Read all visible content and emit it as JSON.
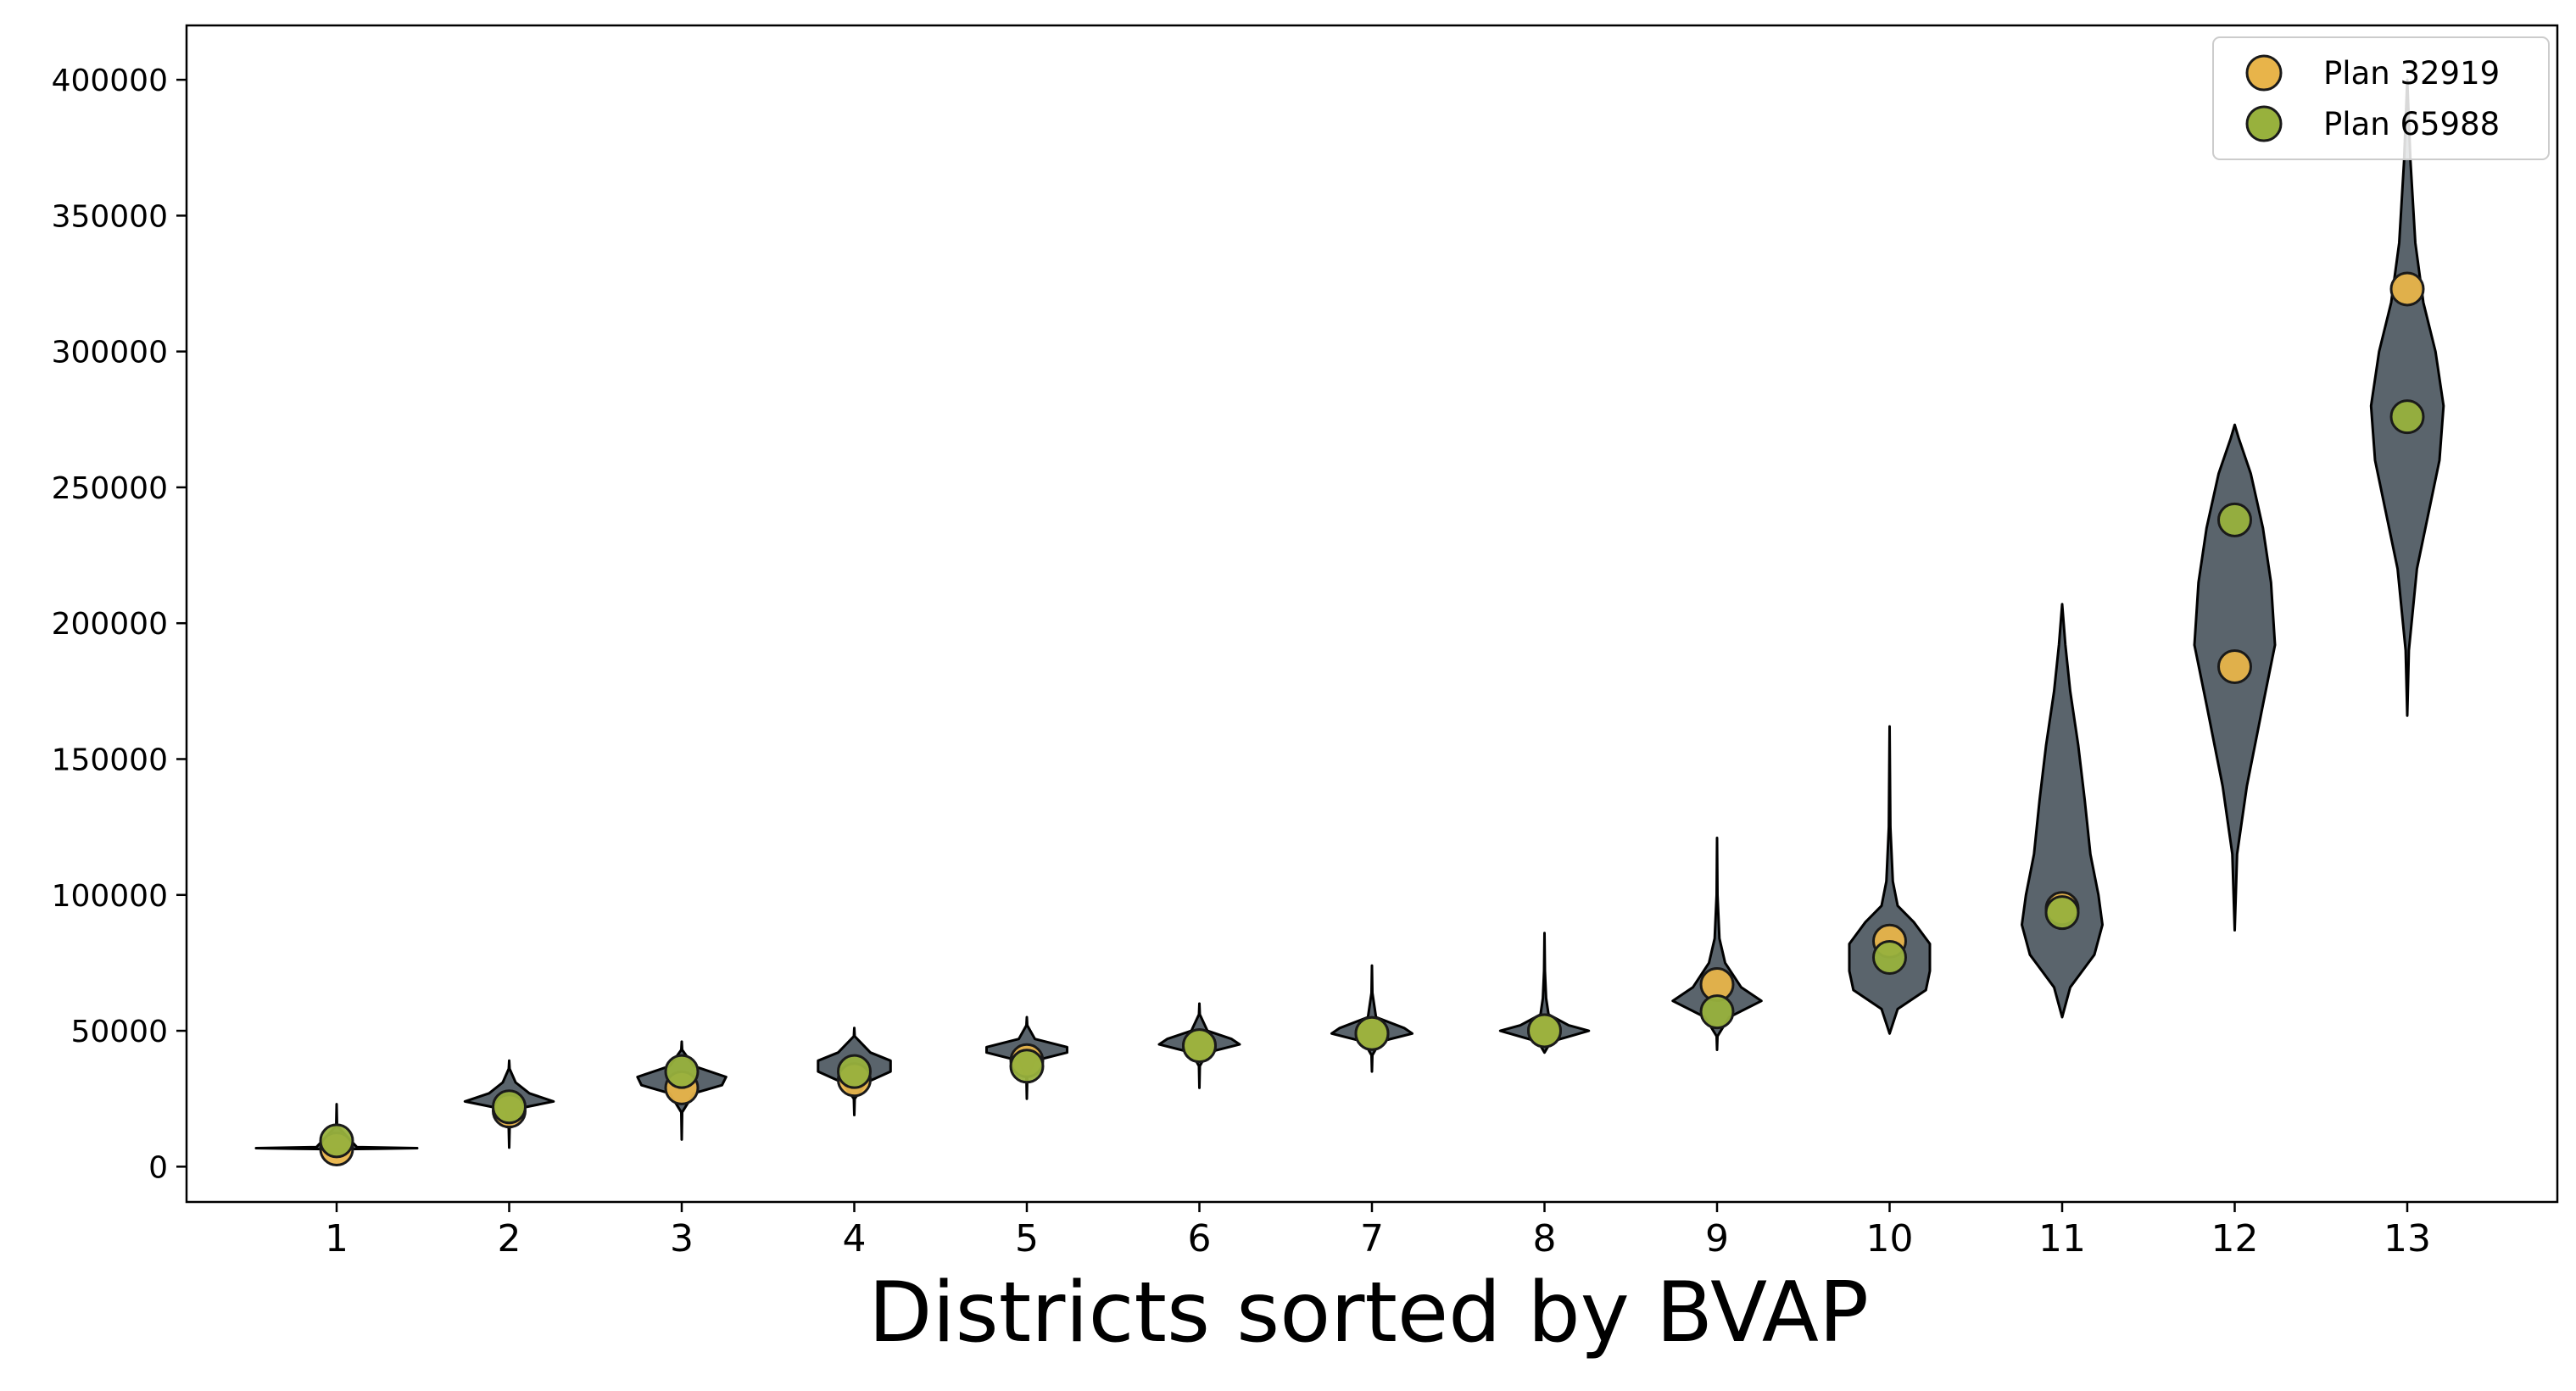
{
  "chart_data": {
    "type": "violin",
    "title": "",
    "xlabel": "Districts sorted by BVAP",
    "ylabel": "",
    "ylim": [
      -13000,
      420000
    ],
    "yticks": [
      0,
      50000,
      100000,
      150000,
      200000,
      250000,
      300000,
      350000,
      400000
    ],
    "ytick_labels": [
      "0",
      "50000",
      "100000",
      "150000",
      "200000",
      "250000",
      "300000",
      "350000",
      "400000"
    ],
    "categories": [
      "1",
      "2",
      "3",
      "4",
      "5",
      "6",
      "7",
      "8",
      "9",
      "10",
      "11",
      "12",
      "13"
    ],
    "grid": false,
    "legend_position": "top-right",
    "violin_color": "#5a646c",
    "violins": [
      {
        "district": 1,
        "profile": [
          [
            0,
            6400
          ],
          [
            0.5,
            6600
          ],
          [
            1.0,
            6800
          ],
          [
            0.25,
            7200
          ],
          [
            0.005,
            15000
          ],
          [
            0,
            23000
          ]
        ]
      },
      {
        "district": 2,
        "profile": [
          [
            0,
            7000
          ],
          [
            0.005,
            14000
          ],
          [
            0.05,
            21000
          ],
          [
            0.55,
            24000
          ],
          [
            0.25,
            27000
          ],
          [
            0.08,
            31000
          ],
          [
            0.005,
            36000
          ],
          [
            0,
            39000
          ]
        ]
      },
      {
        "district": 3,
        "profile": [
          [
            0,
            10000
          ],
          [
            0.005,
            20000
          ],
          [
            0.15,
            27000
          ],
          [
            0.5,
            30000
          ],
          [
            0.55,
            33000
          ],
          [
            0.15,
            37000
          ],
          [
            0.005,
            43000
          ],
          [
            0,
            46000
          ]
        ]
      },
      {
        "district": 4,
        "profile": [
          [
            0,
            19000
          ],
          [
            0.005,
            25000
          ],
          [
            0.15,
            31000
          ],
          [
            0.45,
            35000
          ],
          [
            0.45,
            39000
          ],
          [
            0.2,
            42000
          ],
          [
            0.005,
            48000
          ],
          [
            0,
            51000
          ]
        ]
      },
      {
        "district": 5,
        "profile": [
          [
            0,
            25000
          ],
          [
            0.005,
            33000
          ],
          [
            0.1,
            39000
          ],
          [
            0.5,
            42000
          ],
          [
            0.5,
            44000
          ],
          [
            0.1,
            47000
          ],
          [
            0.005,
            52000
          ],
          [
            0,
            55000
          ]
        ]
      },
      {
        "district": 6,
        "profile": [
          [
            0,
            29000
          ],
          [
            0.005,
            37000
          ],
          [
            0.1,
            42000
          ],
          [
            0.5,
            45000
          ],
          [
            0.4,
            47000
          ],
          [
            0.1,
            50000
          ],
          [
            0.005,
            56000
          ],
          [
            0,
            60000
          ]
        ]
      },
      {
        "district": 7,
        "profile": [
          [
            0,
            35000
          ],
          [
            0.005,
            41000
          ],
          [
            0.1,
            46000
          ],
          [
            0.5,
            49000
          ],
          [
            0.4,
            51000
          ],
          [
            0.05,
            55000
          ],
          [
            0.005,
            64000
          ],
          [
            0,
            74000
          ]
        ]
      },
      {
        "district": 8,
        "profile": [
          [
            0,
            42000
          ],
          [
            0.08,
            46000
          ],
          [
            0.55,
            50000
          ],
          [
            0.3,
            52000
          ],
          [
            0.05,
            56000
          ],
          [
            0.02,
            62000
          ],
          [
            0.005,
            72000
          ],
          [
            0,
            86000
          ]
        ]
      },
      {
        "district": 9,
        "profile": [
          [
            0,
            43000
          ],
          [
            0.005,
            48000
          ],
          [
            0.15,
            55000
          ],
          [
            0.55,
            61000
          ],
          [
            0.3,
            66000
          ],
          [
            0.1,
            75000
          ],
          [
            0.03,
            84000
          ],
          [
            0.005,
            100000
          ],
          [
            0,
            121000
          ]
        ]
      },
      {
        "district": 10,
        "profile": [
          [
            0,
            49000
          ],
          [
            0.1,
            58000
          ],
          [
            0.45,
            65000
          ],
          [
            0.5,
            72000
          ],
          [
            0.5,
            82000
          ],
          [
            0.3,
            90000
          ],
          [
            0.1,
            96000
          ],
          [
            0.04,
            105000
          ],
          [
            0.01,
            125000
          ],
          [
            0,
            162000
          ]
        ]
      },
      {
        "district": 11,
        "profile": [
          [
            0,
            55000
          ],
          [
            0.1,
            66000
          ],
          [
            0.4,
            78000
          ],
          [
            0.5,
            89000
          ],
          [
            0.45,
            100000
          ],
          [
            0.35,
            115000
          ],
          [
            0.28,
            135000
          ],
          [
            0.2,
            155000
          ],
          [
            0.1,
            175000
          ],
          [
            0.04,
            192000
          ],
          [
            0,
            207000
          ]
        ]
      },
      {
        "district": 12,
        "profile": [
          [
            0,
            87000
          ],
          [
            0.03,
            115000
          ],
          [
            0.15,
            140000
          ],
          [
            0.35,
            170000
          ],
          [
            0.5,
            192000
          ],
          [
            0.45,
            215000
          ],
          [
            0.35,
            235000
          ],
          [
            0.2,
            255000
          ],
          [
            0.05,
            268000
          ],
          [
            0,
            273000
          ]
        ]
      },
      {
        "district": 13,
        "profile": [
          [
            0,
            166000
          ],
          [
            0.02,
            190000
          ],
          [
            0.12,
            220000
          ],
          [
            0.4,
            260000
          ],
          [
            0.45,
            280000
          ],
          [
            0.35,
            300000
          ],
          [
            0.2,
            318000
          ],
          [
            0.1,
            340000
          ],
          [
            0.04,
            370000
          ],
          [
            0,
            400000
          ]
        ]
      }
    ],
    "series": [
      {
        "name": "Plan 32919",
        "color": "#e8b44a",
        "values": [
          6500,
          20500,
          29000,
          32000,
          39000,
          44500,
          49000,
          50000,
          67000,
          83000,
          95000,
          184000,
          323000
        ]
      },
      {
        "name": "Plan 65988",
        "color": "#98b13d",
        "values": [
          9500,
          22000,
          35000,
          35000,
          37000,
          44500,
          49000,
          50000,
          57000,
          77000,
          93500,
          238000,
          276000
        ]
      }
    ]
  }
}
